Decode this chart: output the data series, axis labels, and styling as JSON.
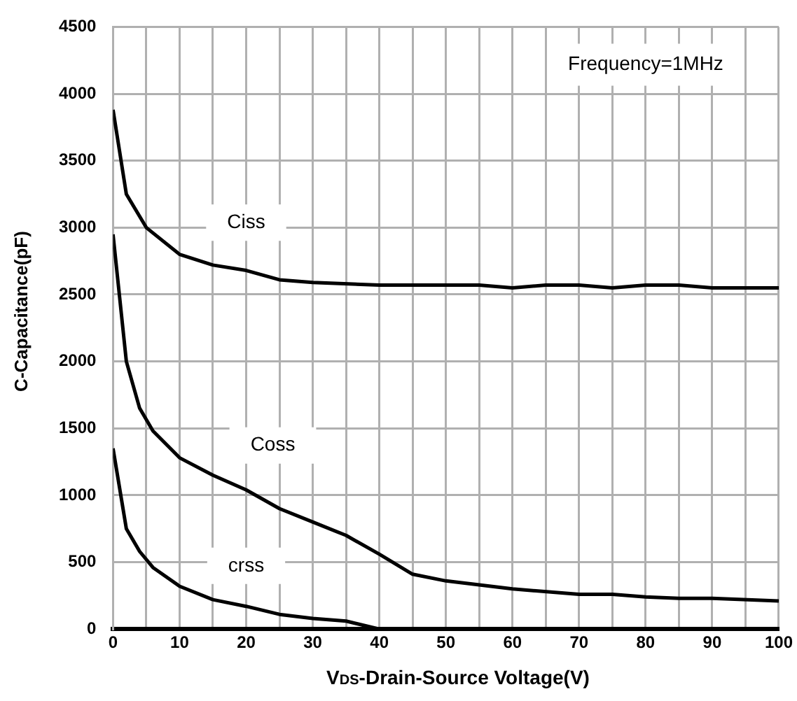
{
  "chart_data": {
    "type": "line",
    "xlabel": "V$_{DS}$-Drain-Source Voltage(V)",
    "ylabel": "C-Capacitance(pF)",
    "annotations": [
      "Frequency=1MHz"
    ],
    "xlim": [
      0,
      100
    ],
    "ylim": [
      0,
      4500
    ],
    "xticks": [
      0,
      {
        "value": 5,
        "label": null
      },
      10,
      {
        "value": 15,
        "label": null
      },
      20,
      {
        "value": 25,
        "label": null
      },
      30,
      {
        "value": 35,
        "label": null
      },
      40,
      {
        "value": 45,
        "label": null
      },
      50,
      {
        "value": 55,
        "label": null
      },
      60,
      {
        "value": 65,
        "label": null
      },
      70,
      {
        "value": 75,
        "label": null
      },
      80,
      {
        "value": 85,
        "label": null
      },
      90,
      {
        "value": 95,
        "label": null
      },
      100
    ],
    "yticks": [
      0,
      500,
      1000,
      1500,
      2000,
      2500,
      3000,
      3500,
      4000,
      4500
    ],
    "grid": true,
    "legend": false,
    "marker": "none",
    "line_style": "solid",
    "series": [
      {
        "name": "Ciss",
        "color": "#000000",
        "x": [
          0,
          2,
          5,
          10,
          15,
          20,
          25,
          30,
          40,
          50,
          55,
          60,
          65,
          70,
          75,
          80,
          85,
          90,
          100
        ],
        "values": [
          3880,
          3250,
          3000,
          2800,
          2720,
          2680,
          2610,
          2590,
          2570,
          2570,
          2570,
          2550,
          2570,
          2570,
          2550,
          2570,
          2570,
          2550,
          2550
        ]
      },
      {
        "name": "Coss",
        "color": "#000000",
        "x": [
          0,
          2,
          4,
          6,
          10,
          15,
          20,
          25,
          30,
          35,
          40,
          45,
          50,
          60,
          70,
          75,
          80,
          85,
          90,
          100
        ],
        "values": [
          2950,
          2000,
          1650,
          1480,
          1280,
          1150,
          1040,
          900,
          800,
          700,
          560,
          410,
          360,
          300,
          260,
          260,
          240,
          230,
          230,
          210
        ]
      },
      {
        "name": "crss",
        "color": "#000000",
        "x": [
          0,
          2,
          4,
          6,
          10,
          15,
          20,
          25,
          30,
          35,
          40,
          50,
          60,
          70,
          80,
          90,
          100
        ],
        "values": [
          1350,
          750,
          580,
          460,
          320,
          220,
          170,
          110,
          80,
          60,
          0,
          0,
          0,
          0,
          0,
          0,
          0
        ]
      }
    ]
  }
}
